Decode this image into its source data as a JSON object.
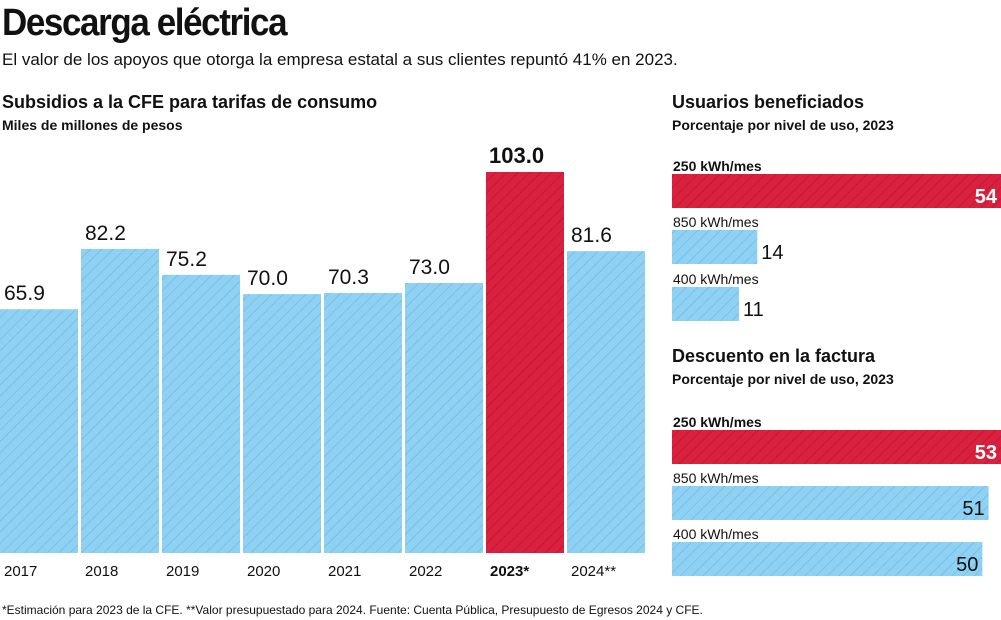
{
  "title": "Descarga eléctrica",
  "subtitle": "El valor de los apoyos que otorga la empresa estatal a sus clientes repuntó 41% en 2023.",
  "note": "*Estimación para 2023 de la CFE. **Valor presupuestado para 2024. Fuente: Cuenta Pública, Presupuesto de Egresos 2024 y CFE.",
  "colors": {
    "normal": "#8fd1f2",
    "highlight": "#d9203f",
    "hatch_normal": "#6db6dc",
    "hatch_highlight": "#b5142f"
  },
  "chart_data": [
    {
      "type": "bar",
      "title": "Subsidios a la CFE para tarifas de consumo",
      "ylabel": "Miles de millones de pesos",
      "categories": [
        "2017",
        "2018",
        "2019",
        "2020",
        "2021",
        "2022",
        "2023*",
        "2024**"
      ],
      "values": [
        65.9,
        82.2,
        75.2,
        70.0,
        70.3,
        73.0,
        103.0,
        81.6
      ],
      "labels": [
        "65.9",
        "82.2",
        "75.2",
        "70.0",
        "70.3",
        "73.0",
        "103.0",
        "81.6"
      ],
      "highlight": "2023*",
      "ylim": [
        0,
        103
      ]
    },
    {
      "type": "bar",
      "orientation": "horizontal",
      "title": "Usuarios beneficiados",
      "subtitle": "Porcentaje por nivel de uso, 2023",
      "categories": [
        "250 kWh/mes",
        "850 kWh/mes",
        "400 kWh/mes"
      ],
      "values": [
        54,
        14,
        11
      ],
      "highlight": "250 kWh/mes"
    },
    {
      "type": "bar",
      "orientation": "horizontal",
      "title": "Descuento en la factura",
      "subtitle": "Porcentaje por nivel de uso, 2023",
      "categories": [
        "250 kWh/mes",
        "850 kWh/mes",
        "400 kWh/mes"
      ],
      "values": [
        53,
        51,
        50
      ],
      "highlight": "250 kWh/mes"
    }
  ]
}
